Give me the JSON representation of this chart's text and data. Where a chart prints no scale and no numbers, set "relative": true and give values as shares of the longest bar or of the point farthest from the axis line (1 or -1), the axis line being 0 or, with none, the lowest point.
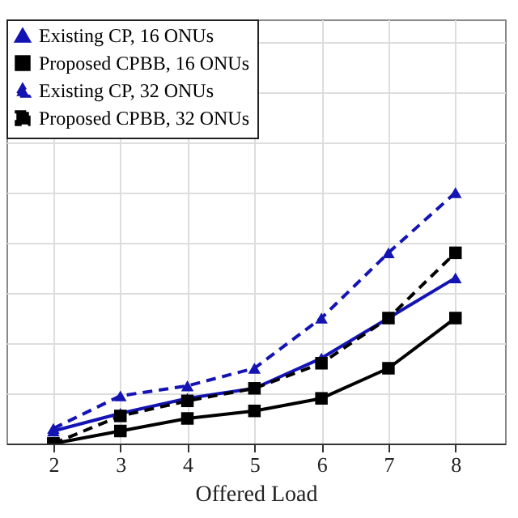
{
  "chart_data": {
    "type": "line",
    "xlabel": "Offered Load",
    "relative": true,
    "x": [
      2,
      3,
      4,
      5,
      6,
      7,
      8
    ],
    "xlim": [
      1.3,
      8.74
    ],
    "xticks": [
      2,
      3,
      4,
      5,
      6,
      7,
      8
    ],
    "grid": true,
    "legend": "top left",
    "series": [
      {
        "name": "Existing CP, 16 ONUs",
        "color": "#1414b4",
        "marker": "triangle",
        "line_style": "solid",
        "values": [
          0.05,
          0.12,
          0.18,
          0.22,
          0.34,
          0.5,
          0.66
        ]
      },
      {
        "name": "Proposed CPBB, 16 ONUs",
        "color": "#000000",
        "marker": "square",
        "line_style": "solid",
        "values": [
          0,
          0.05,
          0.1,
          0.13,
          0.18,
          0.3,
          0.5
        ]
      },
      {
        "name": "Existing CP, 32 ONUs",
        "color": "#1414b4",
        "marker": "triangle",
        "line_style": "dashed",
        "values": [
          0.06,
          0.19,
          0.23,
          0.3,
          0.5,
          0.76,
          1
        ]
      },
      {
        "name": "Proposed CPBB, 32 ONUs",
        "color": "#000000",
        "marker": "square",
        "line_style": "dashed",
        "values": [
          0,
          0.11,
          0.17,
          0.22,
          0.32,
          0.5,
          0.76
        ]
      }
    ]
  }
}
